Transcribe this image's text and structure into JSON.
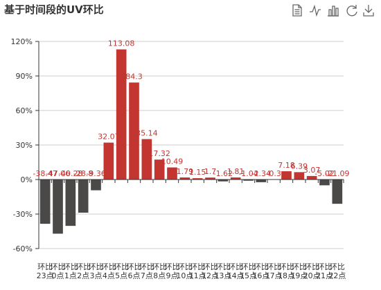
{
  "title": "基于时间段的UV环比",
  "toolbox": {
    "items": [
      {
        "name": "data-view-icon"
      },
      {
        "name": "line-chart-icon"
      },
      {
        "name": "bar-chart-icon"
      },
      {
        "name": "restore-icon"
      },
      {
        "name": "save-image-icon"
      }
    ]
  },
  "chart_data": {
    "type": "bar",
    "title": "基于时间段的UV环比",
    "xlabel": "",
    "ylabel": "",
    "ylim": [
      -60,
      120
    ],
    "y_ticks": [
      -60,
      -30,
      0,
      30,
      60,
      90,
      120
    ],
    "y_tick_suffix": "%",
    "grid": true,
    "legend": "none",
    "colors": {
      "positive": "#c23531",
      "negative": "#4b4848",
      "label": "#c23531",
      "axis": "#333333",
      "grid": "#cccccc"
    },
    "categories": [
      [
        "环比",
        "23点"
      ],
      [
        "环比",
        "0点"
      ],
      [
        "环比",
        "1点"
      ],
      [
        "环比",
        "2点"
      ],
      [
        "环比",
        "3点"
      ],
      [
        "环比",
        "4点"
      ],
      [
        "环比",
        "5点"
      ],
      [
        "环比",
        "6点"
      ],
      [
        "环比",
        "7点"
      ],
      [
        "环比",
        "8点"
      ],
      [
        "环比",
        "9点"
      ],
      [
        "环比",
        "10点"
      ],
      [
        "环比",
        "11点"
      ],
      [
        "环比",
        "12点"
      ],
      [
        "环比",
        "13点"
      ],
      [
        "环比",
        "14点"
      ],
      [
        "环比",
        "15点"
      ],
      [
        "环比",
        "16点"
      ],
      [
        "环比",
        "17点"
      ],
      [
        "环比",
        "18点"
      ],
      [
        "环比",
        "19点"
      ],
      [
        "环比",
        "20点"
      ],
      [
        "环比",
        "21点"
      ],
      [
        "环比",
        "22点"
      ]
    ],
    "values": [
      -38.47,
      -47.06,
      -40.28,
      -28.8,
      -9.36,
      32.07,
      113.08,
      84.3,
      35.14,
      17.32,
      10.49,
      1.79,
      1.15,
      1.7,
      -1.62,
      1.81,
      -1.04,
      -2.34,
      -0.3,
      7.18,
      6.39,
      3.07,
      -5.02,
      -21.09
    ],
    "value_labels": [
      "-38.47",
      "-47.06",
      "-40.28",
      "-28.8",
      "-9.36",
      "32.07",
      "113.08",
      "84.3",
      "35.14",
      "17.32",
      "10.49",
      "1.79",
      "1.15",
      "1.7",
      "-1.62",
      "1.81",
      "-1.04",
      "-2.34",
      "-0.3",
      "7.18",
      "6.39",
      "3.07",
      "-5.02",
      "-21.09"
    ]
  }
}
